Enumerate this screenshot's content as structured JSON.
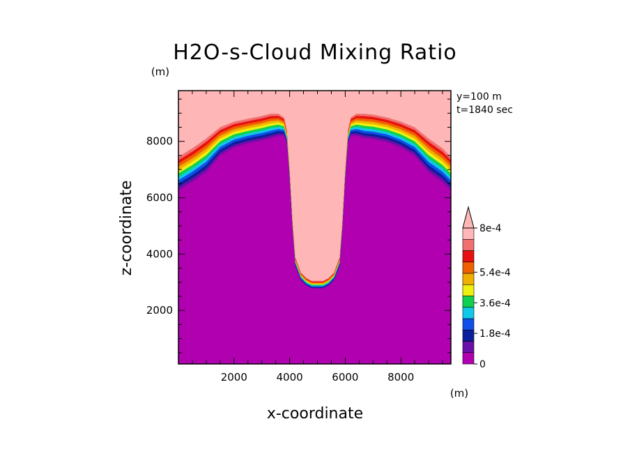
{
  "chart_data": {
    "type": "heatmap",
    "title": "H2O-s-Cloud Mixing Ratio",
    "xlabel": "x-coordinate",
    "ylabel": "z-coordinate",
    "x_unit": "(m)",
    "y_unit": "(m)",
    "annotations": [
      "y=100 m",
      "t=1840 sec"
    ],
    "xlim": [
      0,
      9800
    ],
    "ylim": [
      100,
      9800
    ],
    "x_ticks": [
      2000,
      4000,
      6000,
      8000
    ],
    "y_ticks": [
      2000,
      4000,
      6000,
      8000
    ],
    "grid": false,
    "colorbar": {
      "levels": [
        0,
        9e-05,
        0.00018,
        0.00027,
        0.00036,
        0.00045,
        0.00054,
        0.00063,
        0.00072,
        0.0008
      ],
      "colors": [
        "#b000b0",
        "#6a0fa8",
        "#0a1f9c",
        "#1050e8",
        "#10c8e8",
        "#10d050",
        "#f0f010",
        "#f0b000",
        "#f06000",
        "#e81010",
        "#f07070",
        "#ffb6b6"
      ],
      "tick_labels": [
        "0",
        "1.8e-4",
        "3.6e-4",
        "5.4e-4",
        "8e-4"
      ],
      "tick_values": [
        0,
        0.00018,
        0.00036,
        0.00054,
        0.0008
      ],
      "extend": "max"
    },
    "cloud_base_profile": {
      "description_units": "x in m, cloud-free (saturated top) boundary height z in m",
      "x": [
        0,
        500,
        1000,
        1500,
        2000,
        2500,
        3000,
        3300,
        3600,
        3800,
        3900,
        4000,
        4100,
        4200,
        4400,
        4600,
        4800,
        5000,
        5200,
        5400,
        5600,
        5800,
        5900,
        6000,
        6100,
        6200,
        6400,
        6700,
        7000,
        7500,
        8000,
        8500,
        9000,
        9500,
        9800
      ],
      "z_top": [
        7450,
        7750,
        8100,
        8500,
        8700,
        8800,
        8900,
        8980,
        8980,
        8850,
        8400,
        7000,
        5200,
        3900,
        3350,
        3150,
        3050,
        3050,
        3050,
        3150,
        3350,
        3900,
        5200,
        7000,
        8400,
        8850,
        8980,
        8980,
        8950,
        8850,
        8700,
        8500,
        8100,
        7750,
        7450
      ],
      "bottom_offset_m": [
        1300,
        1300,
        1300,
        1100,
        1000,
        950,
        950,
        950,
        850,
        700,
        500,
        400,
        350,
        350,
        300,
        300,
        300,
        300,
        300,
        300,
        300,
        350,
        350,
        400,
        500,
        700,
        850,
        950,
        950,
        950,
        1000,
        1100,
        1300,
        1300,
        1300
      ]
    }
  }
}
